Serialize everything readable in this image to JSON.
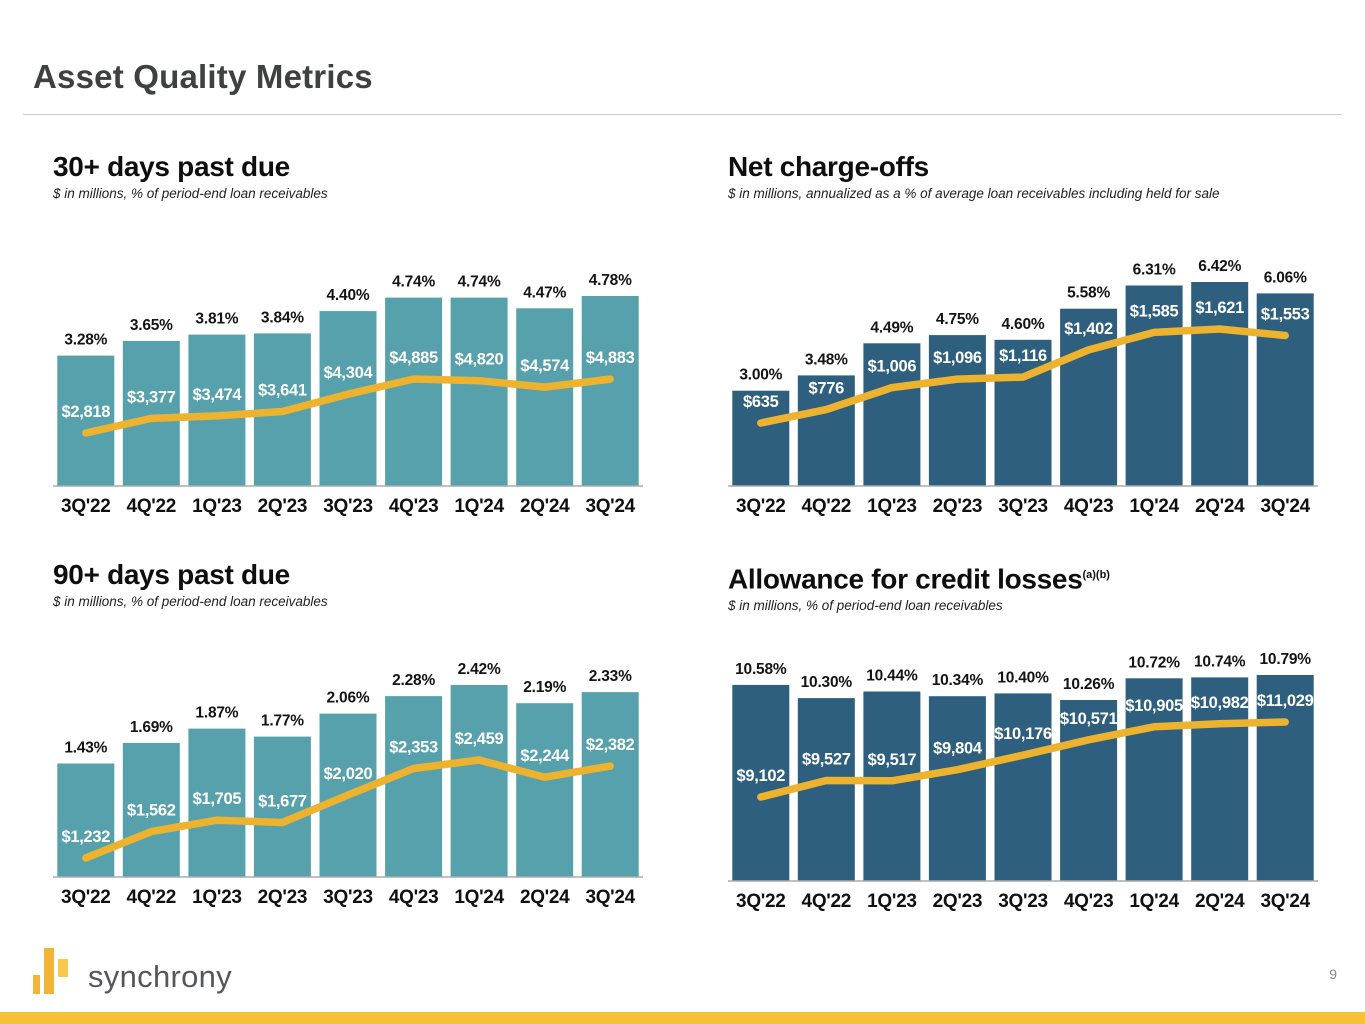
{
  "slide": {
    "title": "Asset Quality Metrics",
    "logo_text": "synchrony",
    "page_number": "9",
    "colors": {
      "teal": "#57a1ad",
      "navy": "#2e5f7e",
      "gold_line": "#edb22e",
      "footer_bar": "#f6c233"
    }
  },
  "chart_data": [
    {
      "type": "bar",
      "title": "30+ days past due",
      "subtitle": "$ in millions, % of period-end loan receivables",
      "categories": [
        "3Q'22",
        "4Q'22",
        "1Q'23",
        "2Q'23",
        "3Q'23",
        "4Q'23",
        "1Q'24",
        "2Q'24",
        "3Q'24"
      ],
      "bars": {
        "metric": "% of period-end loan receivables",
        "values": [
          3.28,
          3.65,
          3.81,
          3.84,
          4.4,
          4.74,
          4.74,
          4.47,
          4.78
        ],
        "labels": [
          "3.28%",
          "3.65%",
          "3.81%",
          "3.84%",
          "4.40%",
          "4.74%",
          "4.74%",
          "4.47%",
          "4.78%"
        ],
        "color": "#57a1ad"
      },
      "line": {
        "metric": "$ in millions",
        "values": [
          2818,
          3377,
          3474,
          3641,
          4304,
          4885,
          4820,
          4574,
          4883
        ],
        "labels": [
          "$2,818",
          "$3,377",
          "$3,474",
          "$3,641",
          "$4,304",
          "$4,885",
          "$4,820",
          "$4,574",
          "$4,883"
        ],
        "color": "#edb22e"
      }
    },
    {
      "type": "bar",
      "title": "Net charge-offs",
      "subtitle": "$ in millions, annualized as a % of average loan receivables including held for sale",
      "categories": [
        "3Q'22",
        "4Q'22",
        "1Q'23",
        "2Q'23",
        "3Q'23",
        "4Q'23",
        "1Q'24",
        "2Q'24",
        "3Q'24"
      ],
      "bars": {
        "metric": "% of average loan receivables",
        "values": [
          3.0,
          3.48,
          4.49,
          4.75,
          4.6,
          5.58,
          6.31,
          6.42,
          6.06
        ],
        "labels": [
          "3.00%",
          "3.48%",
          "4.49%",
          "4.75%",
          "4.60%",
          "5.58%",
          "6.31%",
          "6.42%",
          "6.06%"
        ],
        "color": "#2e5f7e"
      },
      "line": {
        "metric": "$ in millions",
        "values": [
          635,
          776,
          1006,
          1096,
          1116,
          1402,
          1585,
          1621,
          1553
        ],
        "labels": [
          "$635",
          "$776",
          "$1,006",
          "$1,096",
          "$1,116",
          "$1,402",
          "$1,585",
          "$1,621",
          "$1,553"
        ],
        "color": "#edb22e"
      }
    },
    {
      "type": "bar",
      "title": "90+ days past due",
      "subtitle": "$ in millions, % of period-end loan receivables",
      "categories": [
        "3Q'22",
        "4Q'22",
        "1Q'23",
        "2Q'23",
        "3Q'23",
        "4Q'23",
        "1Q'24",
        "2Q'24",
        "3Q'24"
      ],
      "bars": {
        "metric": "% of period-end loan receivables",
        "values": [
          1.43,
          1.69,
          1.87,
          1.77,
          2.06,
          2.28,
          2.42,
          2.19,
          2.33
        ],
        "labels": [
          "1.43%",
          "1.69%",
          "1.87%",
          "1.77%",
          "2.06%",
          "2.28%",
          "2.42%",
          "2.19%",
          "2.33%"
        ],
        "color": "#57a1ad"
      },
      "line": {
        "metric": "$ in millions",
        "values": [
          1232,
          1562,
          1705,
          1677,
          2020,
          2353,
          2459,
          2244,
          2382
        ],
        "labels": [
          "$1,232",
          "$1,562",
          "$1,705",
          "$1,677",
          "$2,020",
          "$2,353",
          "$2,459",
          "$2,244",
          "$2,382"
        ],
        "color": "#edb22e"
      }
    },
    {
      "type": "bar",
      "title": "Allowance for credit losses",
      "superscript": "(a)(b)",
      "subtitle": "$ in millions, % of period-end loan receivables",
      "categories": [
        "3Q'22",
        "4Q'22",
        "1Q'23",
        "2Q'23",
        "3Q'23",
        "4Q'23",
        "1Q'24",
        "2Q'24",
        "3Q'24"
      ],
      "bars": {
        "metric": "% of period-end loan receivables",
        "values": [
          10.58,
          10.3,
          10.44,
          10.34,
          10.4,
          10.26,
          10.72,
          10.74,
          10.79
        ],
        "labels": [
          "10.58%",
          "10.30%",
          "10.44%",
          "10.34%",
          "10.40%",
          "10.26%",
          "10.72%",
          "10.74%",
          "10.79%"
        ],
        "color": "#2e5f7e"
      },
      "line": {
        "metric": "$ in millions",
        "values": [
          9102,
          9527,
          9517,
          9804,
          10176,
          10571,
          10905,
          10982,
          11029
        ],
        "labels": [
          "$9,102",
          "$9,527",
          "$9,517",
          "$9,804",
          "$10,176",
          "$10,571",
          "$10,905",
          "$10,982",
          "$11,029"
        ],
        "color": "#edb22e"
      }
    }
  ]
}
